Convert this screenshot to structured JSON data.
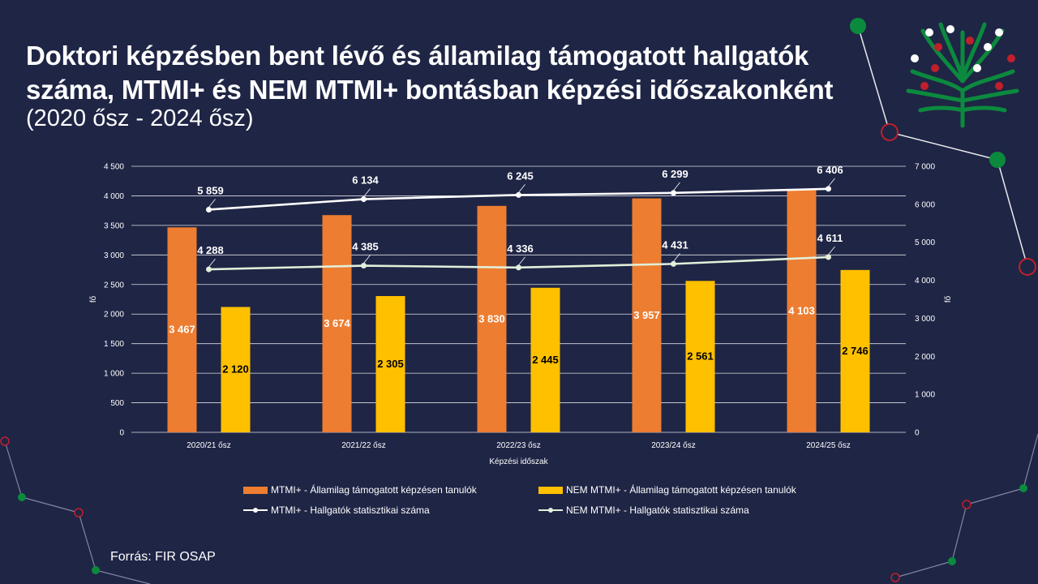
{
  "title": "Doktori képzésben bent lévő és államilag támogatott hallgatók száma, MTMI+ és NEM MTMI+ bontásban képzési időszakonként",
  "subtitle": "(2020 ősz - 2024 ősz)",
  "source": "Forrás: FIR OSAP",
  "colors": {
    "background": "#1f2545",
    "mtmi_bar": "#ed7d31",
    "nem_mtmi_bar": "#ffc000",
    "mtmi_line": "#ffffff",
    "nem_mtmi_line": "#e2efda",
    "gridline": "#ffffff",
    "deco_green": "#0b8a3e",
    "deco_red": "#c0202b"
  },
  "chart_data": {
    "type": "bar",
    "categories": [
      "2020/21 ősz",
      "2021/22 ősz",
      "2022/23 ősz",
      "2023/24 ősz",
      "2024/25 ősz"
    ],
    "xlabel": "Képzési időszak",
    "ylabel": "fő",
    "y2label": "fő",
    "ylim": [
      0,
      4500
    ],
    "y2lim": [
      0,
      7000
    ],
    "yticks": [
      "0",
      "500",
      "1 000",
      "1 500",
      "2 000",
      "2 500",
      "3 000",
      "3 500",
      "4 000",
      "4 500"
    ],
    "y2ticks": [
      "0",
      "1 000",
      "2 000",
      "3 000",
      "4 000",
      "5 000",
      "6 000",
      "7 000"
    ],
    "grid": true,
    "legend_position": "bottom",
    "series": [
      {
        "name": "MTMI+ - Államilag támogatott képzésen tanulók",
        "kind": "bar",
        "axis": "left",
        "values": [
          3467,
          3674,
          3830,
          3957,
          4103
        ],
        "labels": [
          "3 467",
          "3 674",
          "3 830",
          "3 957",
          "4 103"
        ]
      },
      {
        "name": "NEM MTMI+ - Államilag támogatott képzésen tanulók",
        "kind": "bar",
        "axis": "left",
        "values": [
          2120,
          2305,
          2445,
          2561,
          2746
        ],
        "labels": [
          "2 120",
          "2 305",
          "2 445",
          "2 561",
          "2 746"
        ]
      },
      {
        "name": "MTMI+ - Hallgatók statisztikai száma",
        "kind": "line",
        "axis": "right",
        "values": [
          5859,
          6134,
          6245,
          6299,
          6406
        ],
        "labels": [
          "5 859",
          "6 134",
          "6 245",
          "6 299",
          "6 406"
        ]
      },
      {
        "name": "NEM MTMI+ - Hallgatók statisztikai száma",
        "kind": "line",
        "axis": "right",
        "values": [
          4288,
          4385,
          4336,
          4431,
          4611
        ],
        "labels": [
          "4 288",
          "4 385",
          "4 336",
          "4 431",
          "4 611"
        ]
      }
    ]
  }
}
